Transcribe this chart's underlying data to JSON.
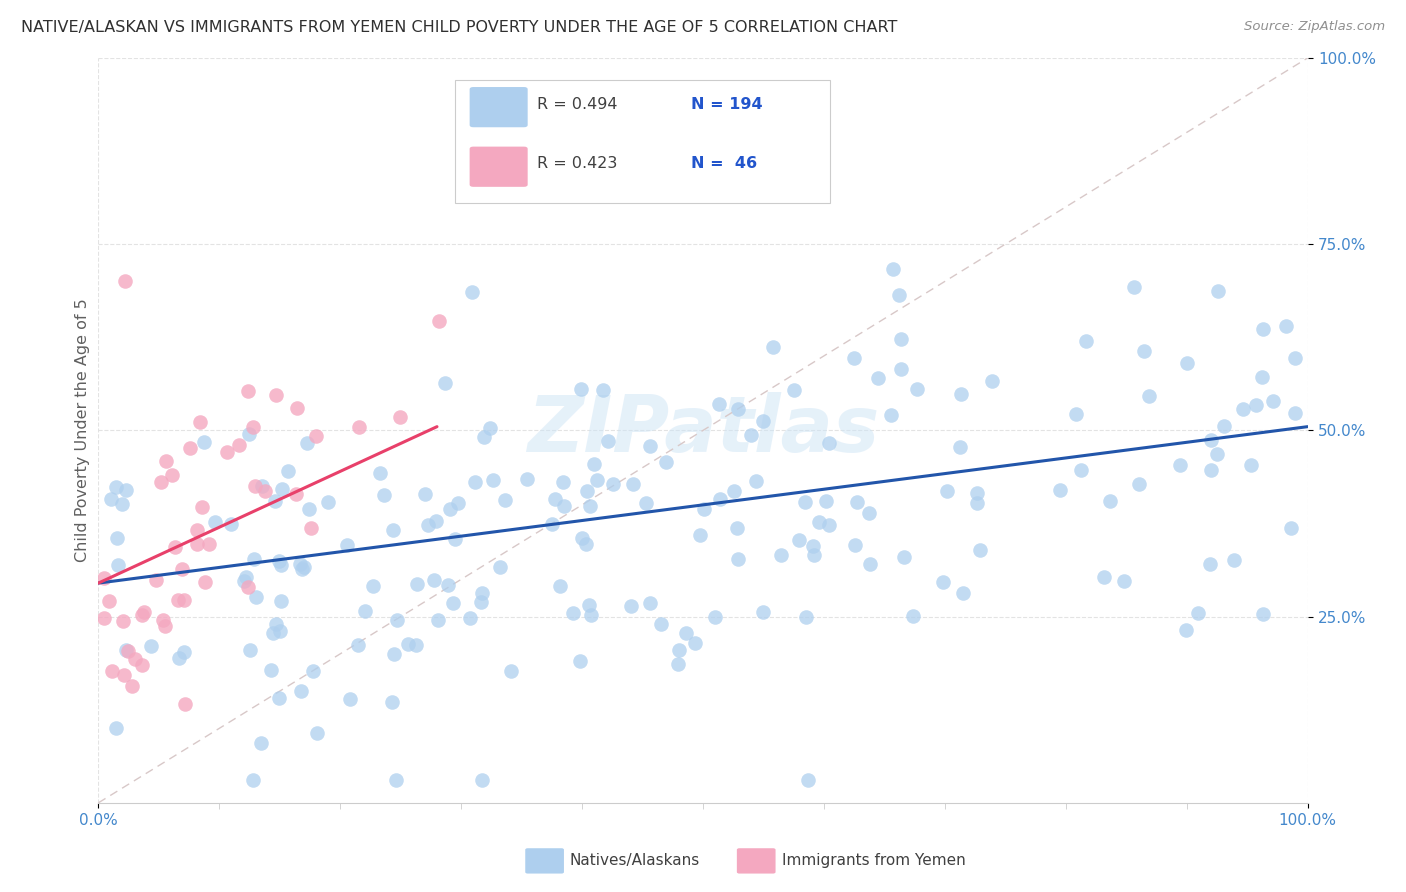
{
  "title": "NATIVE/ALASKAN VS IMMIGRANTS FROM YEMEN CHILD POVERTY UNDER THE AGE OF 5 CORRELATION CHART",
  "source": "Source: ZipAtlas.com",
  "ylabel": "Child Poverty Under the Age of 5",
  "xlim": [
    0,
    1
  ],
  "ylim": [
    0,
    1
  ],
  "xtick_labels": [
    "0.0%",
    "100.0%"
  ],
  "ytick_labels": [
    "25.0%",
    "50.0%",
    "75.0%",
    "100.0%"
  ],
  "ytick_positions": [
    0.25,
    0.5,
    0.75,
    1.0
  ],
  "watermark": "ZIPatlas",
  "legend_label1": "Natives/Alaskans",
  "legend_label2": "Immigrants from Yemen",
  "color_blue": "#aecfee",
  "color_pink": "#f4a8c0",
  "line_blue": "#2255aa",
  "line_pink": "#e8406a",
  "line_diag": "#d8c8c8",
  "title_color": "#303030",
  "source_color": "#909090",
  "axis_label_color": "#4488cc",
  "ylabel_color": "#606060",
  "legend_R_color": "#404040",
  "legend_N_color": "#2255cc",
  "grid_color": "#e0e0e0",
  "blue_trend_start_y": 0.295,
  "blue_trend_end_y": 0.505,
  "pink_trend_start_y": 0.295,
  "pink_trend_end_x": 0.28,
  "pink_trend_end_y": 0.505
}
